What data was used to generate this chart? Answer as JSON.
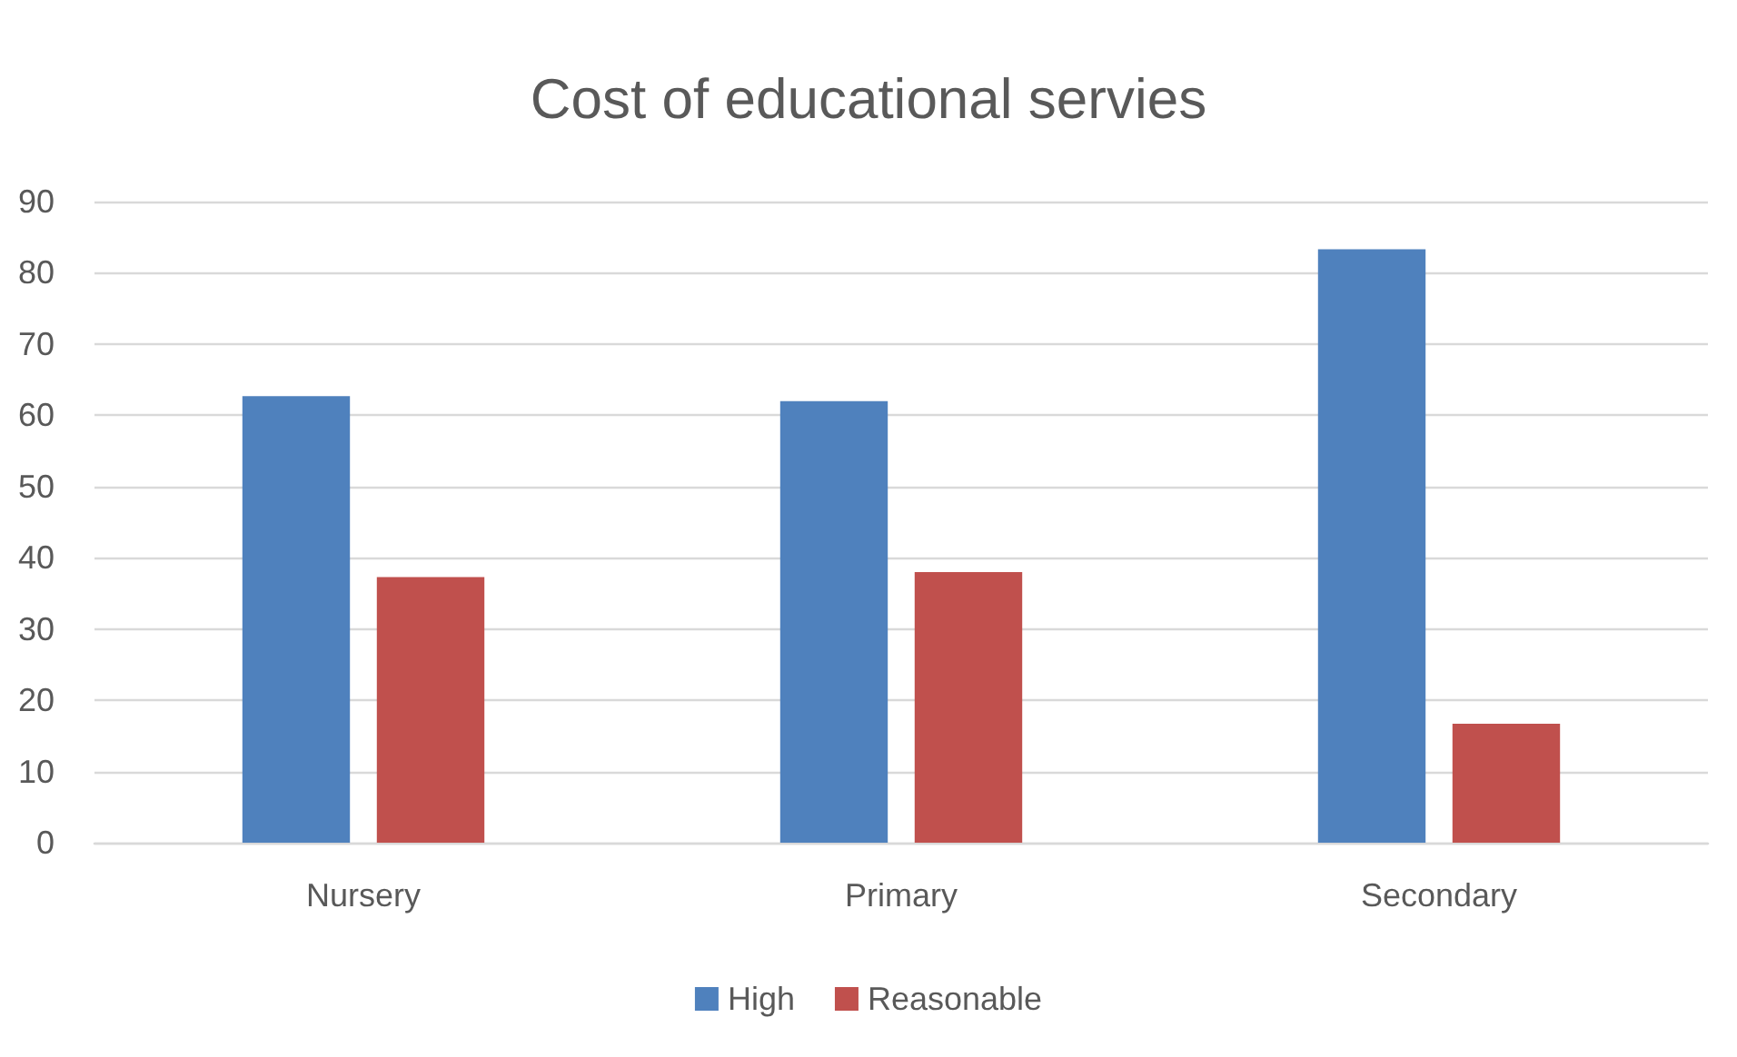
{
  "chart_data": {
    "type": "bar",
    "title": "Cost of educational servies",
    "categories": [
      "Nursery",
      "Primary",
      "Secondary"
    ],
    "series": [
      {
        "name": "High",
        "color": "#4f81bd",
        "values": [
          62.7,
          62,
          83.3
        ]
      },
      {
        "name": "Reasonable",
        "color": "#c0504d",
        "values": [
          37.3,
          38,
          16.7
        ]
      }
    ],
    "ylim": [
      0,
      90
    ],
    "yticks": [
      0,
      10,
      20,
      30,
      40,
      50,
      60,
      70,
      80,
      90
    ],
    "grid": "y",
    "legend": "bottom"
  }
}
